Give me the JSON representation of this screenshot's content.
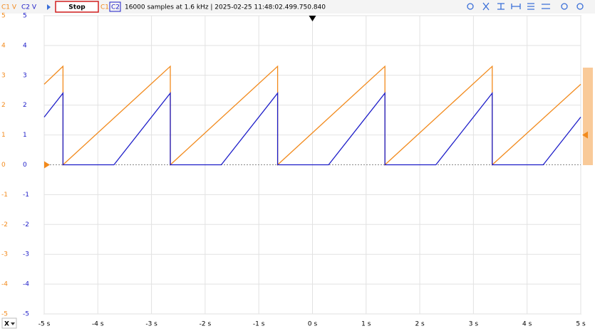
{
  "toolbar": {
    "stop_button": "Stop",
    "status": "16000 samples at 1.6 kHz | 2025-02-25 11:48:02.499.750.840",
    "x_axis_selector": "X"
  },
  "chart_data": {
    "type": "line",
    "ylabel": "C1 V",
    "y2label": "C2 V",
    "xlim": [
      -5,
      5
    ],
    "xticks": [
      {
        "value": -5,
        "label": "-5 s"
      },
      {
        "value": -4,
        "label": "-4 s"
      },
      {
        "value": -3,
        "label": "-3 s"
      },
      {
        "value": -2,
        "label": "-2 s"
      },
      {
        "value": -1,
        "label": "-1 s"
      },
      {
        "value": 0,
        "label": "0 s"
      },
      {
        "value": 1,
        "label": "1 s"
      },
      {
        "value": 2,
        "label": "2 s"
      },
      {
        "value": 3,
        "label": "3 s"
      },
      {
        "value": 4,
        "label": "4 s"
      },
      {
        "value": 5,
        "label": "5 s"
      }
    ],
    "ylim": [
      -5,
      5
    ],
    "yticks": [
      5,
      4,
      3,
      2,
      1,
      0,
      -1,
      -2,
      -3,
      -4,
      -5
    ],
    "y2lim": [
      -5,
      5
    ],
    "y2ticks": [
      5,
      4,
      3,
      2,
      1,
      0,
      -1,
      -2,
      -3,
      -4,
      -5
    ],
    "grid": true,
    "series": [
      {
        "name": "C1",
        "color": "#f28a1c",
        "x": [
          -5,
          -4.65,
          -4.65,
          -2.65,
          -2.65,
          -0.65,
          -0.65,
          1.35,
          1.35,
          3.35,
          3.35,
          5
        ],
        "values": [
          2.7,
          3.3,
          0,
          3.3,
          0,
          3.3,
          0,
          3.3,
          0,
          3.3,
          0,
          2.7
        ]
      },
      {
        "name": "C2",
        "color": "#1c1cc8",
        "axis": "y2",
        "x": [
          -5,
          -4.65,
          -4.65,
          -3.7,
          -2.65,
          -2.65,
          -1.7,
          -0.65,
          -0.65,
          0.3,
          1.35,
          1.35,
          2.3,
          3.35,
          3.35,
          4.3,
          5
        ],
        "values": [
          1.6,
          2.4,
          0,
          0,
          2.4,
          0,
          0,
          2.4,
          0,
          0,
          2.4,
          0,
          0,
          2.4,
          0,
          0,
          1.6
        ]
      }
    ]
  }
}
